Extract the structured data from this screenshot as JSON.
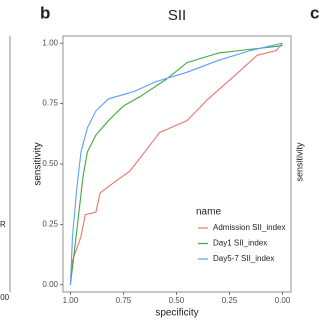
{
  "chart_data": {
    "type": "line",
    "panel_label": "b",
    "title": "SII",
    "x_label": "specificity",
    "y_label": "sensitivity",
    "xlim": [
      1.035,
      -0.04
    ],
    "ylim": [
      -0.03,
      1.03
    ],
    "xticks": [
      {
        "value": 1,
        "label": "1.00"
      },
      0.75,
      {
        "value": 0.5,
        "label": "0.50"
      },
      0.25,
      {
        "value": 0,
        "label": "0.00"
      }
    ],
    "yticks": [
      {
        "value": 0,
        "label": "0.00"
      },
      0.25,
      {
        "value": 0.5,
        "label": "0.50"
      },
      0.75,
      {
        "value": 1,
        "label": "1.00"
      }
    ],
    "legend_title": "name",
    "legend_position": "lower-right",
    "series": [
      {
        "name": "Admission SII_index",
        "color": "#e8776b",
        "x": [
          1.0,
          0.99,
          0.95,
          0.93,
          0.88,
          0.86,
          0.8,
          0.72,
          0.65,
          0.58,
          0.45,
          0.35,
          0.22,
          0.12,
          0.03,
          0.0
        ],
        "values": [
          0.0,
          0.1,
          0.2,
          0.29,
          0.3,
          0.38,
          0.42,
          0.47,
          0.55,
          0.63,
          0.68,
          0.77,
          0.87,
          0.95,
          0.97,
          1.0
        ]
      },
      {
        "name": "Day1 SII_index",
        "color": "#3daa3d",
        "x": [
          1.0,
          0.98,
          0.96,
          0.94,
          0.92,
          0.88,
          0.82,
          0.75,
          0.67,
          0.55,
          0.45,
          0.3,
          0.2,
          0.0
        ],
        "values": [
          0.0,
          0.15,
          0.3,
          0.45,
          0.55,
          0.62,
          0.68,
          0.74,
          0.78,
          0.85,
          0.92,
          0.96,
          0.97,
          0.99
        ]
      },
      {
        "name": "Day5-7 SII_index",
        "color": "#619cff",
        "x": [
          1.0,
          0.99,
          0.97,
          0.95,
          0.92,
          0.88,
          0.82,
          0.7,
          0.6,
          0.45,
          0.3,
          0.15,
          0.0
        ],
        "values": [
          0.0,
          0.2,
          0.4,
          0.55,
          0.65,
          0.72,
          0.77,
          0.8,
          0.84,
          0.88,
          0.93,
          0.97,
          1.0
        ]
      }
    ],
    "left_neighbor_texts": [
      "R",
      ".00"
    ],
    "right_neighbor_label": "c",
    "right_neighbor_axis_label": "sensitivity"
  }
}
